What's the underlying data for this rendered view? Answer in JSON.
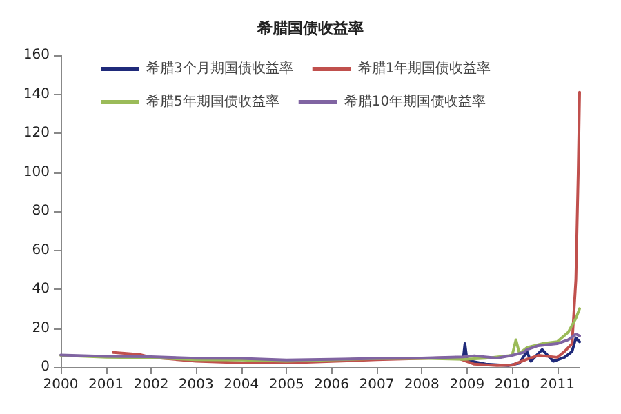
{
  "chart_data": {
    "type": "line",
    "title": "希腊国债收益率",
    "xlim": [
      "2000-01",
      "2011-07"
    ],
    "xticks": [
      "2000",
      "2001",
      "2002",
      "2003",
      "2004",
      "2005",
      "2006",
      "2007",
      "2008",
      "2009",
      "2010",
      "2011"
    ],
    "ylim": [
      0,
      160
    ],
    "yticks": [
      0,
      20,
      40,
      60,
      80,
      100,
      120,
      140,
      160
    ],
    "grid": false,
    "legend": "top",
    "marker": "none",
    "line_style": "solid",
    "series": [
      {
        "name": "希腊3个月期国债收益率",
        "color": "#1f2a7a",
        "x": [
          "2008-12",
          "2008-12-15",
          "2009-01",
          "2009-06",
          "2009-12",
          "2010-03",
          "2010-05",
          "2010-06",
          "2010-09",
          "2010-12",
          "2011-03",
          "2011-05",
          "2011-06",
          "2011-07"
        ],
        "values": [
          4,
          12,
          3.5,
          1.5,
          0.8,
          2,
          8,
          3,
          9,
          3,
          5,
          8,
          15,
          13
        ]
      },
      {
        "name": "希腊1年期国债收益率",
        "color": "#c0504d",
        "x": [
          "2001-03",
          "2001-10",
          "2002",
          "2003",
          "2004",
          "2005",
          "2006",
          "2007",
          "2008",
          "2008-10",
          "2009-03",
          "2009-09",
          "2010-01",
          "2010-05",
          "2010-08",
          "2011-01",
          "2011-03",
          "2011-05",
          "2011-06",
          "2011-06-20",
          "2011-07"
        ],
        "values": [
          7.5,
          6.5,
          5,
          3,
          2.2,
          2.1,
          2.9,
          3.8,
          4.4,
          5,
          1.5,
          0.8,
          1,
          4,
          6,
          5,
          8,
          12,
          45,
          100,
          141
        ]
      },
      {
        "name": "希腊5年期国债收益率",
        "color": "#9bbb59",
        "x": [
          "2000",
          "2001",
          "2002",
          "2003",
          "2004",
          "2005",
          "2006",
          "2007",
          "2008",
          "2008-12",
          "2009-06",
          "2010-01",
          "2010-02",
          "2010-03",
          "2010-05",
          "2010-09",
          "2011-01",
          "2011-04",
          "2011-06",
          "2011-07"
        ],
        "values": [
          6,
          5,
          4.8,
          3.8,
          3.6,
          3,
          3.7,
          4.3,
          4.5,
          4,
          4.5,
          6,
          14,
          7,
          10,
          12,
          13,
          18,
          25,
          30
        ]
      },
      {
        "name": "希腊10年期国债收益率",
        "color": "#8064a2",
        "x": [
          "2000",
          "2001",
          "2002",
          "2003",
          "2004",
          "2005",
          "2006",
          "2007",
          "2008",
          "2008-12",
          "2009-03",
          "2009-09",
          "2010-01",
          "2010-04",
          "2010-05",
          "2010-08",
          "2011-01",
          "2011-04",
          "2011-06",
          "2011-07"
        ],
        "values": [
          6.2,
          5.5,
          5.3,
          4.5,
          4.4,
          3.6,
          4,
          4.4,
          4.6,
          5.2,
          5.8,
          4.6,
          6,
          7.5,
          9,
          11,
          12,
          14,
          17,
          16
        ]
      }
    ]
  }
}
